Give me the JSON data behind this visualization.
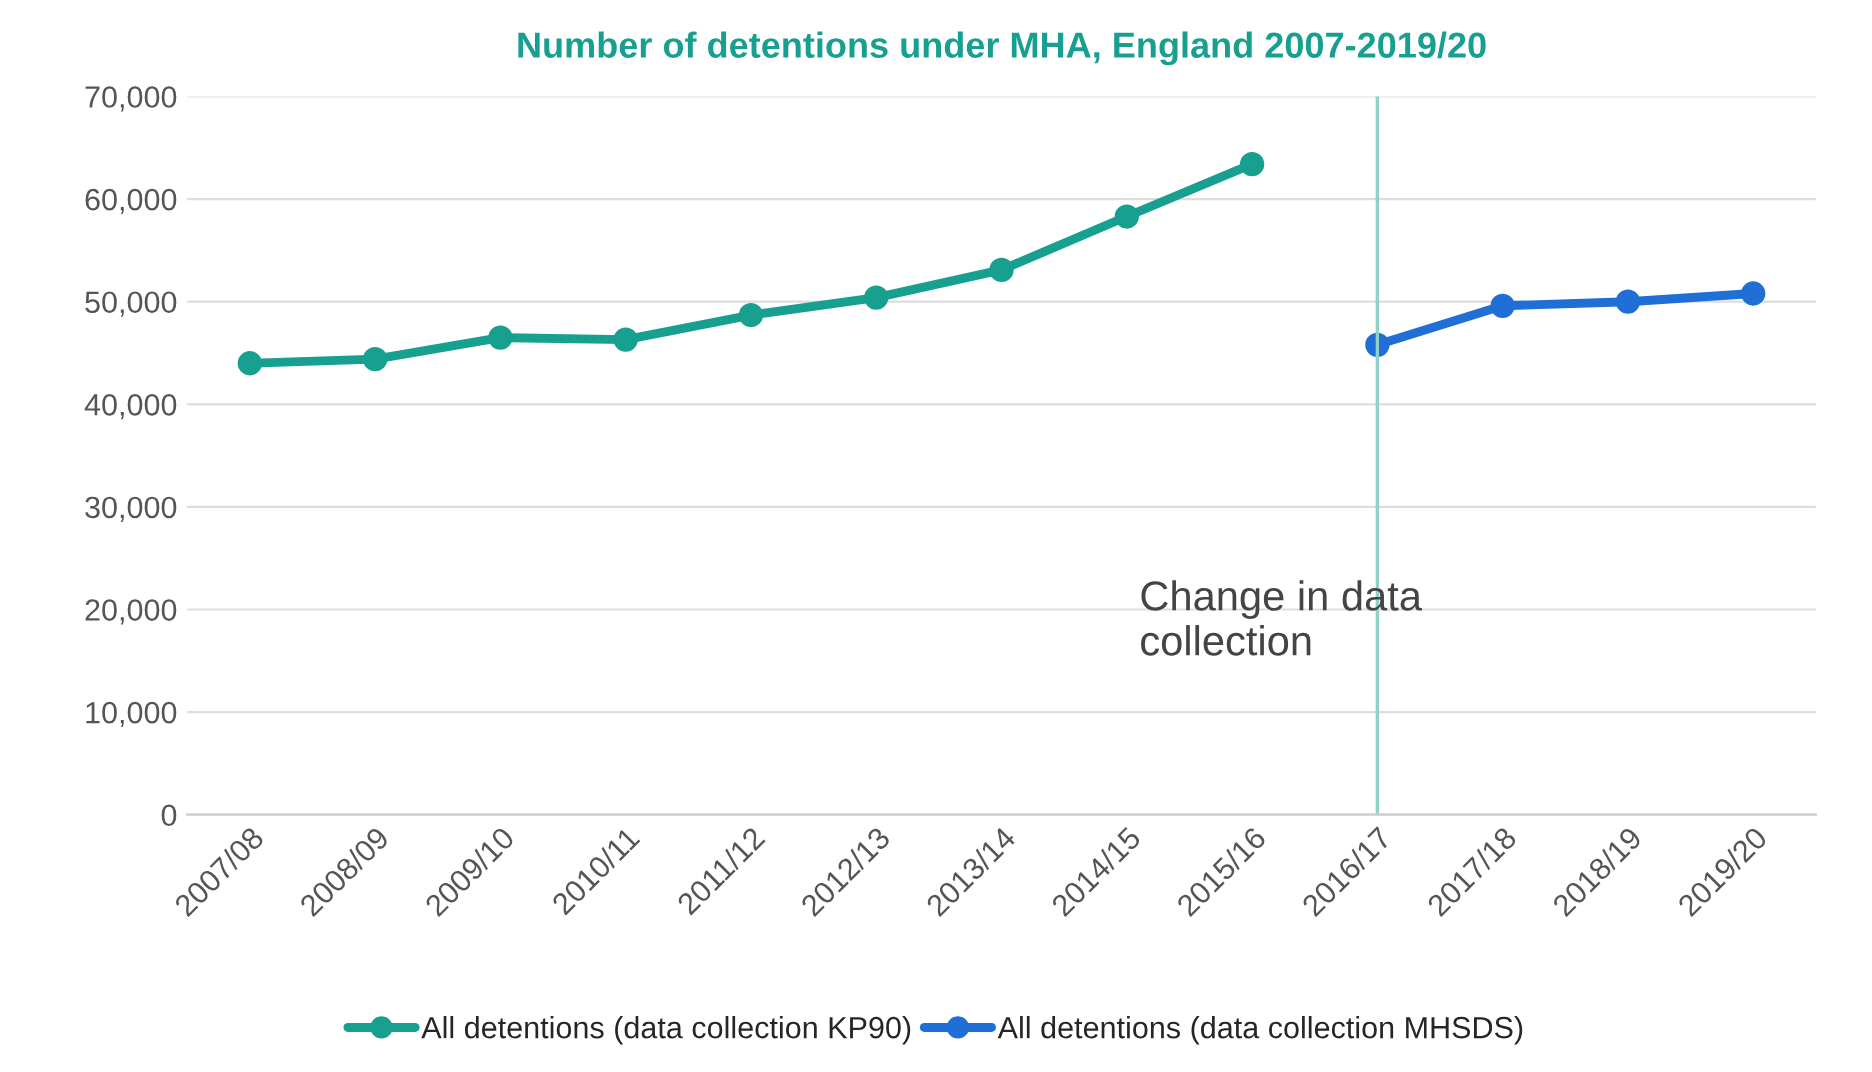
{
  "chart_data": {
    "type": "line",
    "title": "Number of detentions under MHA, England 2007-2019/20",
    "categories": [
      "2007/08",
      "2008/09",
      "2009/10",
      "2010/11",
      "2011/12",
      "2012/13",
      "2013/14",
      "2014/15",
      "2015/16",
      "2016/17",
      "2017/18",
      "2018/19",
      "2019/20"
    ],
    "series": [
      {
        "name": "All detentions (data collection KP90)",
        "color": "#17a08f",
        "values": [
          44000,
          44400,
          46500,
          46300,
          48700,
          50400,
          53100,
          58300,
          63400,
          null,
          null,
          null,
          null
        ]
      },
      {
        "name": "All detentions (data collection MHSDS)",
        "color": "#1f6fd6",
        "values": [
          null,
          null,
          null,
          null,
          null,
          null,
          null,
          null,
          null,
          45800,
          49600,
          50000,
          50800
        ]
      }
    ],
    "ylim": [
      0,
      70000
    ],
    "yticks": [
      {
        "value": 0,
        "label": "0"
      },
      {
        "value": 10000,
        "label": "10,000"
      },
      {
        "value": 20000,
        "label": "20,000"
      },
      {
        "value": 30000,
        "label": "30,000"
      },
      {
        "value": 40000,
        "label": "40,000"
      },
      {
        "value": 50000,
        "label": "50,000"
      },
      {
        "value": 60000,
        "label": "60,000"
      },
      {
        "value": 70000,
        "label": "70,000"
      }
    ],
    "ref_lines": [
      {
        "axis": "x",
        "value": "2016/17",
        "label": "Change in data\ncollection",
        "color": "#8fd3c8",
        "line_style": "solid"
      }
    ],
    "grid": "y",
    "legend": "bottom",
    "marker": "circle",
    "line_style": "solid"
  }
}
